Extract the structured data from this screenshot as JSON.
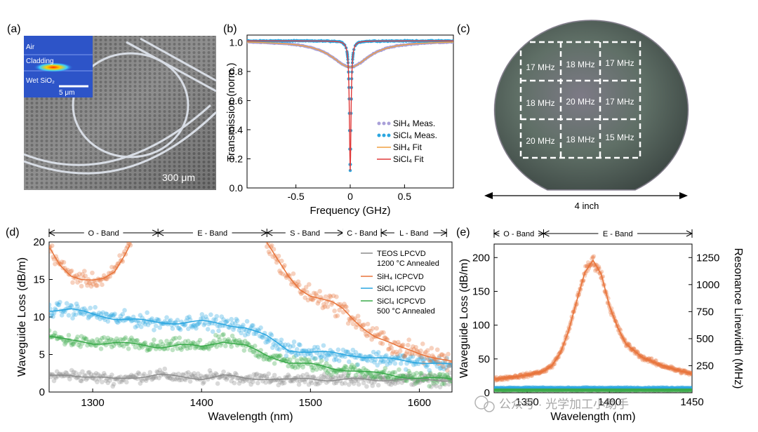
{
  "panel_labels": {
    "a": "(a)",
    "b": "(b)",
    "c": "(c)",
    "d": "(d)",
    "e": "(e)"
  },
  "panel_a": {
    "inset_labels": [
      "Air",
      "Cladding",
      "Wet SiO₂"
    ],
    "inset_scale": "5 μm",
    "scale_label": "300 μm"
  },
  "panel_c": {
    "grid_labels": [
      "17 MHz",
      "18 MHz",
      "17 MHz",
      "18 MHz",
      "20 MHz",
      "17 MHz",
      "20 MHz",
      "18 MHz",
      "15 MHz"
    ],
    "dimension_label": "4 inch"
  },
  "watermark": "公众号 · 光学加工小助手",
  "colors": {
    "sih4": "#e8743a",
    "sicl4": "#2aa6e0",
    "teos": "#8c8c8c",
    "sicl4_annealed": "#3aaa4a",
    "sih4_meas_b": "#a9a0d8",
    "sicl4_fit_b": "#e03a3a",
    "sih4_fit_b": "#f0a040"
  },
  "chart_data": [
    {
      "id": "b",
      "type": "line",
      "xlabel": "Frequency (GHz)",
      "ylabel": "Transmission (norm.)",
      "xlim": [
        -0.95,
        0.95
      ],
      "ylim": [
        0.0,
        1.05
      ],
      "xticks": [
        -0.5,
        0.0,
        0.5
      ],
      "xtick_labels": [
        "-0.5",
        "0",
        "0.5"
      ],
      "yticks": [
        0.0,
        0.2,
        0.4,
        0.6,
        0.8,
        1.0
      ],
      "ytick_labels": [
        "0.0",
        "0.2",
        "0.4",
        "0.6",
        "0.8",
        "1.0"
      ],
      "legend": [
        "SiH₄ Meas.",
        "SiCl₄ Meas.",
        "SiH₄ Fit",
        "SiCl₄ Fit"
      ],
      "series": [
        {
          "name": "SiH₄ Meas.",
          "lorentz": {
            "depth": 0.18,
            "width": 0.42,
            "baseline": 1.01
          }
        },
        {
          "name": "SiCl₄ Meas.",
          "lorentz": {
            "depth": 0.89,
            "width": 0.018,
            "baseline": 1.01
          }
        },
        {
          "name": "SiH₄ Fit",
          "lorentz": {
            "depth": 0.18,
            "width": 0.42,
            "baseline": 1.01
          }
        },
        {
          "name": "SiCl₄ Fit",
          "lorentz": {
            "depth": 0.89,
            "width": 0.018,
            "baseline": 1.01
          }
        }
      ]
    },
    {
      "id": "d",
      "type": "scatter",
      "xlabel": "Wavelength (nm)",
      "ylabel": "Waveguide Loss (dB/m)",
      "xlim": [
        1260,
        1630
      ],
      "ylim": [
        0,
        20
      ],
      "xticks": [
        1300,
        1400,
        1500,
        1600
      ],
      "xtick_labels": [
        "1300",
        "1400",
        "1500",
        "1600"
      ],
      "yticks": [
        0,
        5,
        10,
        15,
        20
      ],
      "ytick_labels": [
        "0",
        "5",
        "10",
        "15",
        "20"
      ],
      "bands": [
        {
          "label": "O - Band",
          "start": 1260,
          "end": 1360
        },
        {
          "label": "E - Band",
          "start": 1360,
          "end": 1460
        },
        {
          "label": "S - Band",
          "start": 1460,
          "end": 1530
        },
        {
          "label": "C - Band",
          "start": 1530,
          "end": 1565
        },
        {
          "label": "L - Band",
          "start": 1565,
          "end": 1625
        }
      ],
      "legend": [
        "TEOS LPCVD",
        "1200 °C Annealed",
        "SiH₄ ICPCVD",
        "SiCl₄ ICPCVD",
        "SiCl₄ ICPCVD",
        "500 °C Annealed"
      ],
      "series": [
        {
          "name": "TEOS LPCVD 1200 °C Annealed",
          "x": [
            1260,
            1280,
            1300,
            1320,
            1340,
            1360,
            1380,
            1400,
            1420,
            1440,
            1460,
            1480,
            1500,
            1520,
            1540,
            1560,
            1580,
            1600,
            1630
          ],
          "y": [
            2.1,
            2.3,
            2.0,
            1.7,
            2.0,
            2.3,
            2.0,
            1.8,
            2.2,
            1.8,
            1.8,
            1.6,
            1.8,
            1.6,
            1.7,
            1.6,
            1.7,
            1.6,
            1.6
          ],
          "scatter": 0.8
        },
        {
          "name": "SiH₄ ICPCVD (O-band)",
          "x": [
            1260,
            1270,
            1280,
            1290,
            1300,
            1310,
            1320,
            1330,
            1335
          ],
          "y": [
            19.3,
            17.0,
            15.6,
            15.0,
            14.8,
            15.0,
            16.0,
            18.5,
            20.0
          ],
          "scatter": 1.0
        },
        {
          "name": "SiH₄ ICPCVD (S/C/L-band)",
          "x": [
            1460,
            1470,
            1480,
            1490,
            1500,
            1510,
            1520,
            1530,
            1540,
            1550,
            1560,
            1570,
            1580,
            1590,
            1600,
            1610,
            1620,
            1630
          ],
          "y": [
            19.8,
            17.5,
            15.4,
            13.8,
            12.9,
            12.4,
            11.9,
            11.0,
            9.6,
            8.4,
            7.4,
            6.7,
            6.0,
            5.6,
            5.2,
            4.8,
            4.4,
            4.0
          ],
          "scatter": 1.3
        },
        {
          "name": "SiCl₄ ICPCVD",
          "x": [
            1260,
            1280,
            1300,
            1320,
            1340,
            1360,
            1380,
            1400,
            1420,
            1440,
            1460,
            1480,
            1500,
            1520,
            1540,
            1560,
            1580,
            1600,
            1630
          ],
          "y": [
            10.9,
            11.0,
            10.4,
            9.8,
            9.6,
            9.3,
            9.2,
            9.4,
            9.1,
            8.6,
            7.4,
            5.6,
            5.3,
            5.2,
            4.9,
            4.5,
            4.3,
            4.0,
            3.6
          ],
          "scatter": 1.0
        },
        {
          "name": "SiCl₄ ICPCVD 500 °C Annealed",
          "x": [
            1260,
            1280,
            1300,
            1320,
            1340,
            1360,
            1380,
            1400,
            1420,
            1440,
            1460,
            1480,
            1500,
            1520,
            1540,
            1560,
            1580,
            1600,
            1630
          ],
          "y": [
            7.5,
            6.8,
            6.5,
            6.6,
            6.3,
            6.0,
            6.3,
            6.0,
            6.8,
            6.2,
            4.8,
            4.0,
            3.7,
            3.1,
            2.9,
            2.5,
            2.1,
            1.9,
            1.7
          ],
          "scatter": 0.9
        }
      ]
    },
    {
      "id": "e",
      "type": "scatter",
      "xlabel": "Wavelength (nm)",
      "ylabel": "Waveguide Loss (dB/m)",
      "y2label": "Resonance Linewidth (MHz)",
      "xlim": [
        1330,
        1450
      ],
      "ylim": [
        0,
        220
      ],
      "y2lim": [
        0,
        1375
      ],
      "xticks": [
        1350,
        1400,
        1450
      ],
      "xtick_labels": [
        "1350",
        "1400",
        "1450"
      ],
      "yticks": [
        0,
        50,
        100,
        150,
        200
      ],
      "ytick_labels": [
        "0",
        "50",
        "100",
        "150",
        "200"
      ],
      "y2ticks": [
        250,
        500,
        750,
        1000,
        1250
      ],
      "y2tick_labels": [
        "250",
        "500",
        "750",
        "1000",
        "1250"
      ],
      "bands": [
        {
          "label": "O - Band",
          "start": 1330,
          "end": 1360
        },
        {
          "label": "E - Band",
          "start": 1360,
          "end": 1450
        }
      ],
      "series": [
        {
          "name": "SiH₄ ICPCVD",
          "x": [
            1330,
            1340,
            1350,
            1360,
            1365,
            1370,
            1375,
            1380,
            1385,
            1390,
            1395,
            1400,
            1405,
            1410,
            1420,
            1430,
            1440,
            1450
          ],
          "y": [
            20,
            23,
            26,
            32,
            40,
            58,
            90,
            135,
            178,
            196,
            175,
            128,
            96,
            72,
            52,
            42,
            34,
            28
          ],
          "scatter": 3
        },
        {
          "name": "SiCl₄ ICPCVD",
          "x": [
            1330,
            1450
          ],
          "y": [
            7,
            7
          ],
          "scatter": 1.5
        },
        {
          "name": "SiCl₄ ICPCVD 500 °C Annealed",
          "x": [
            1330,
            1450
          ],
          "y": [
            4,
            4
          ],
          "scatter": 1.2
        }
      ]
    }
  ]
}
